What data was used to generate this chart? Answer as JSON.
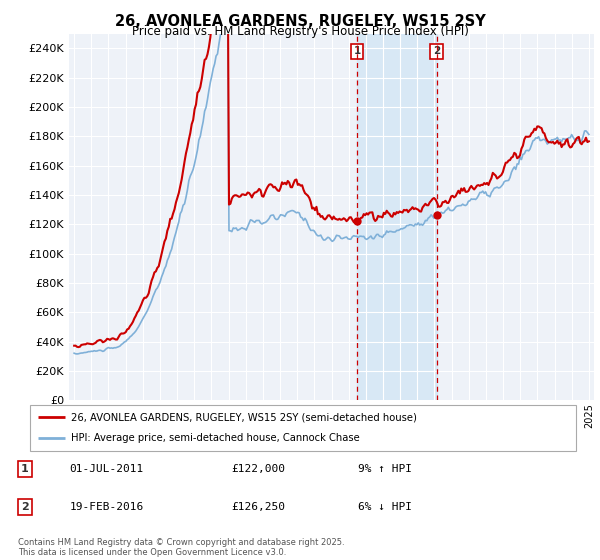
{
  "title": "26, AVONLEA GARDENS, RUGELEY, WS15 2SY",
  "subtitle": "Price paid vs. HM Land Registry's House Price Index (HPI)",
  "hpi_color": "#7fb0d8",
  "price_color": "#cc0000",
  "fill_color": "#d0e4f5",
  "marker_color": "#cc0000",
  "background_color": "#ffffff",
  "plot_bg_color": "#eef2f8",
  "grid_color": "#ffffff",
  "ylim": [
    0,
    250000
  ],
  "ytick_vals": [
    0,
    20000,
    40000,
    60000,
    80000,
    100000,
    120000,
    140000,
    160000,
    180000,
    200000,
    220000,
    240000
  ],
  "ytick_labels": [
    "£0",
    "£20K",
    "£40K",
    "£60K",
    "£80K",
    "£100K",
    "£120K",
    "£140K",
    "£160K",
    "£180K",
    "£200K",
    "£220K",
    "£240K"
  ],
  "sale1_year": 2011.5,
  "sale1_price": 122000,
  "sale1_label": "1",
  "sale1_date": "01-JUL-2011",
  "sale1_amount": "£122,000",
  "sale1_hpi": "9% ↑ HPI",
  "sale2_year": 2016.12,
  "sale2_price": 126250,
  "sale2_label": "2",
  "sale2_date": "19-FEB-2016",
  "sale2_amount": "£126,250",
  "sale2_hpi": "6% ↓ HPI",
  "legend_line1": "26, AVONLEA GARDENS, RUGELEY, WS15 2SY (semi-detached house)",
  "legend_line2": "HPI: Average price, semi-detached house, Cannock Chase",
  "footnote": "Contains HM Land Registry data © Crown copyright and database right 2025.\nThis data is licensed under the Open Government Licence v3.0.",
  "start_year": 1995,
  "end_year": 2025
}
